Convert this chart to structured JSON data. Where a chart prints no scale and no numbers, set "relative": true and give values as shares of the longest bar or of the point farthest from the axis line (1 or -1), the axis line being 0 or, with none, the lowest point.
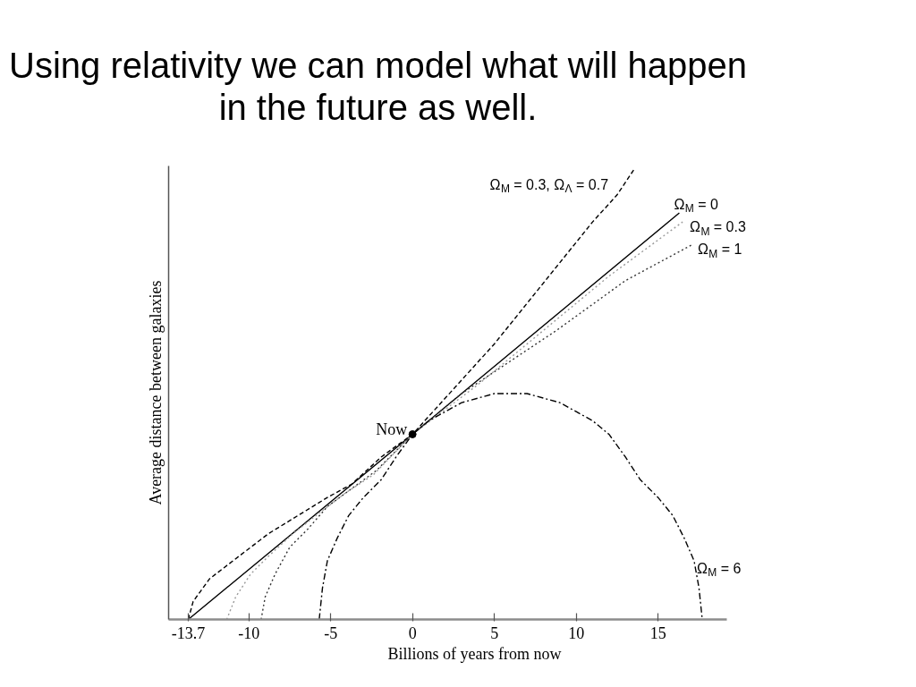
{
  "chart_data": {
    "type": "line",
    "title": "Using relativity we can model what will happen in the future as well.",
    "xlabel": "Billions of years from now",
    "ylabel": "Average distance between galaxies",
    "relative": true,
    "xlim": [
      -14.9,
      19.2
    ],
    "xticks": [
      -13.7,
      -10,
      -5,
      0,
      5,
      10,
      15
    ],
    "series": [
      {
        "name": "Ω$_{M}$ = 0.3, Ω$_{Λ}$ = 0.7",
        "color": "#000000",
        "line_style": "dashed",
        "x": [
          -13.7,
          -13.4,
          -12.4,
          -10.6,
          -8.8,
          -7.0,
          -5.2,
          -3.7,
          -1.9,
          0,
          1.5,
          3.0,
          5.0,
          7.0,
          9.0,
          11.0,
          12.5,
          13.6
        ],
        "values": [
          0,
          0.04,
          0.09,
          0.14,
          0.19,
          0.23,
          0.27,
          0.3,
          0.36,
          0.41,
          0.47,
          0.53,
          0.61,
          0.7,
          0.79,
          0.88,
          0.94,
          1.0
        ]
      },
      {
        "name": "Ω$_{M}$ = 0",
        "color": "#000000",
        "line_style": "solid",
        "x": [
          -13.7,
          0,
          16.3
        ],
        "values": [
          0,
          0.41,
          0.9
        ]
      },
      {
        "name": "Ω$_{M}$ = 0.3",
        "color": "#999999",
        "line_style": "dotted",
        "x": [
          -11.35,
          -10.8,
          -9.9,
          -8.8,
          -7.3,
          -5.9,
          -4.1,
          -2.4,
          0,
          4,
          8,
          12,
          16.5
        ],
        "values": [
          0,
          0.05,
          0.1,
          0.14,
          0.19,
          0.23,
          0.28,
          0.32,
          0.41,
          0.52,
          0.64,
          0.76,
          0.88
        ]
      },
      {
        "name": "Ω$_{M}$ = 1",
        "color": "#333333",
        "line_style": "dotted",
        "x": [
          -9.25,
          -9.0,
          -8.4,
          -7.5,
          -6.4,
          -5.2,
          -3.7,
          -2.2,
          0,
          3,
          8.8,
          13,
          17.1
        ],
        "values": [
          0,
          0.05,
          0.1,
          0.16,
          0.2,
          0.25,
          0.29,
          0.33,
          0.41,
          0.5,
          0.64,
          0.75,
          0.83
        ]
      },
      {
        "name": "Ω$_{M}$ = 6",
        "color": "#000000",
        "line_style": "dashdot",
        "x": [
          -5.7,
          -5.5,
          -5.2,
          -4.6,
          -3.9,
          -3.0,
          -1.9,
          -1.0,
          0,
          1,
          2,
          3,
          4,
          5,
          6,
          7,
          8,
          9,
          10,
          11,
          12,
          13,
          13.9,
          15,
          15.9,
          16.6,
          17.2,
          17.5,
          17.7
        ],
        "values": [
          0,
          0.07,
          0.13,
          0.18,
          0.23,
          0.27,
          0.31,
          0.36,
          0.41,
          0.44,
          0.46,
          0.48,
          0.49,
          0.5,
          0.5,
          0.5,
          0.49,
          0.48,
          0.46,
          0.44,
          0.41,
          0.36,
          0.31,
          0.27,
          0.23,
          0.18,
          0.13,
          0.07,
          0
        ]
      }
    ],
    "annotations": [
      {
        "text": "Now",
        "x": 0,
        "y": 0.41
      }
    ]
  }
}
